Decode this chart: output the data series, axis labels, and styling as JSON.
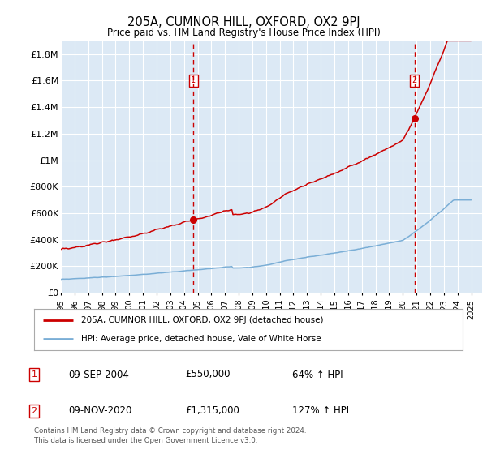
{
  "title": "205A, CUMNOR HILL, OXFORD, OX2 9PJ",
  "subtitle": "Price paid vs. HM Land Registry's House Price Index (HPI)",
  "background_color": "#dce9f5",
  "ylim": [
    0,
    1900000
  ],
  "yticks": [
    0,
    200000,
    400000,
    600000,
    800000,
    1000000,
    1200000,
    1400000,
    1600000,
    1800000
  ],
  "ytick_labels": [
    "£0",
    "£200K",
    "£400K",
    "£600K",
    "£800K",
    "£1M",
    "£1.2M",
    "£1.4M",
    "£1.6M",
    "£1.8M"
  ],
  "x_start_year": 1995,
  "x_end_year": 2025,
  "sale1_date": 2004.69,
  "sale1_price": 550000,
  "sale2_date": 2020.86,
  "sale2_price": 1315000,
  "legend_line1": "205A, CUMNOR HILL, OXFORD, OX2 9PJ (detached house)",
  "legend_line2": "HPI: Average price, detached house, Vale of White Horse",
  "ann1_date": "09-SEP-2004",
  "ann1_price": "£550,000",
  "ann1_hpi": "64% ↑ HPI",
  "ann2_date": "09-NOV-2020",
  "ann2_price": "£1,315,000",
  "ann2_hpi": "127% ↑ HPI",
  "footer": "Contains HM Land Registry data © Crown copyright and database right 2024.\nThis data is licensed under the Open Government Licence v3.0.",
  "red_color": "#cc0000",
  "blue_color": "#7aaed6",
  "vline_color": "#cc0000"
}
